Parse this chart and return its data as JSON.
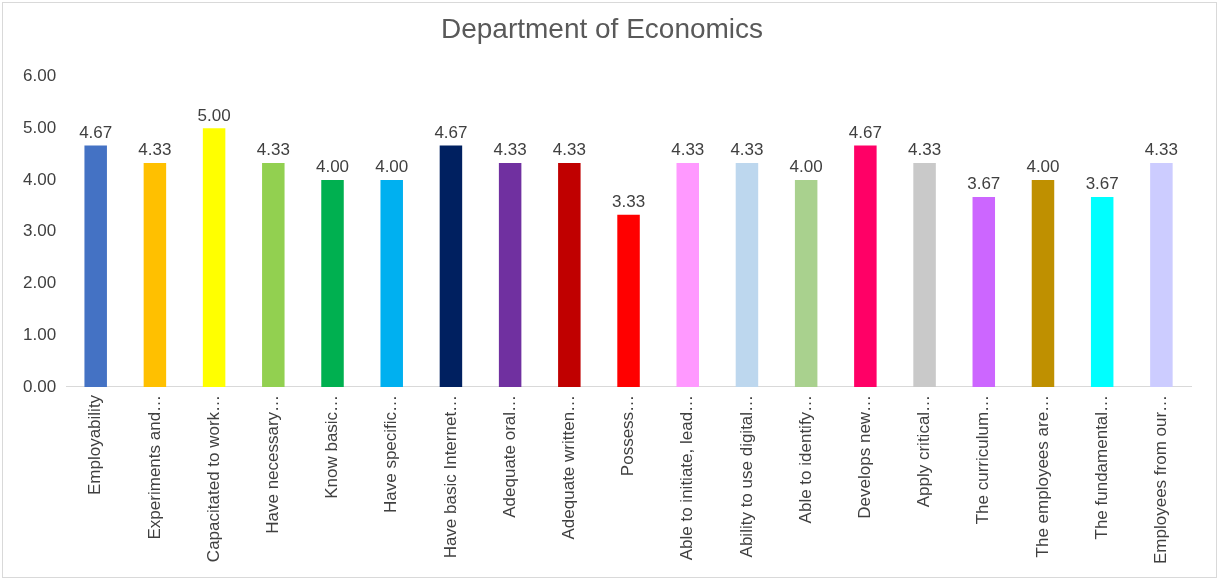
{
  "chart_data": {
    "type": "bar",
    "title": "Department of Economics",
    "categories": [
      "Employability",
      "Experiments and…",
      "Capacitated to work…",
      "Have necessary…",
      "Know basic…",
      "Have specific…",
      "Have basic Internet…",
      "Adequate oral…",
      "Adequate written…",
      "Possess…",
      "Able to initiate, lead…",
      "Ability to use digital…",
      "Able to identify…",
      "Develops new…",
      "Apply critical…",
      "The curriculum…",
      "The employees are…",
      "The fundamental…",
      "Employees from our…"
    ],
    "values": [
      4.67,
      4.33,
      5.0,
      4.33,
      4.0,
      4.0,
      4.67,
      4.33,
      4.33,
      3.33,
      4.33,
      4.33,
      4.0,
      4.67,
      4.33,
      3.67,
      4.0,
      3.67,
      4.33
    ],
    "value_labels": [
      "4.67",
      "4.33",
      "5.00",
      "4.33",
      "4.00",
      "4.00",
      "4.67",
      "4.33",
      "4.33",
      "3.33",
      "4.33",
      "4.33",
      "4.00",
      "4.67",
      "4.33",
      "3.67",
      "4.00",
      "3.67",
      "4.33"
    ],
    "colors": [
      "#4472c4",
      "#ffc000",
      "#ffff00",
      "#92d050",
      "#00b050",
      "#00b0f0",
      "#002060",
      "#7030a0",
      "#c00000",
      "#ff0000",
      "#ff99ff",
      "#bdd7ee",
      "#a9d18e",
      "#ff0066",
      "#c9c9c9",
      "#cc66ff",
      "#bf9000",
      "#00ffff",
      "#ccccff"
    ],
    "ylim": [
      0,
      6
    ],
    "yticks": [
      {
        "value": 0,
        "label": "0.00"
      },
      {
        "value": 1,
        "label": "1.00"
      },
      {
        "value": 2,
        "label": "2.00"
      },
      {
        "value": 3,
        "label": "3.00"
      },
      {
        "value": 4,
        "label": "4.00"
      },
      {
        "value": 5,
        "label": "5.00"
      },
      {
        "value": 6,
        "label": "6.00"
      }
    ],
    "grid": false,
    "legend": false
  }
}
